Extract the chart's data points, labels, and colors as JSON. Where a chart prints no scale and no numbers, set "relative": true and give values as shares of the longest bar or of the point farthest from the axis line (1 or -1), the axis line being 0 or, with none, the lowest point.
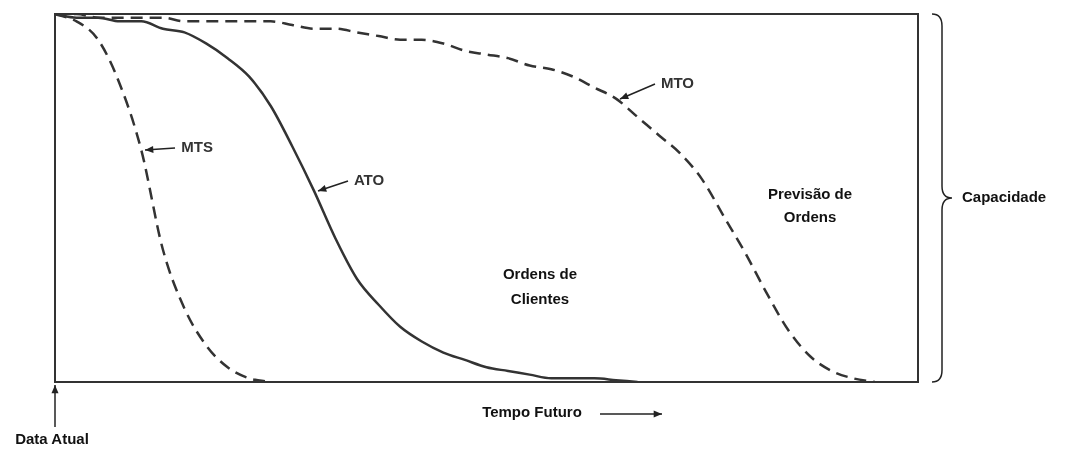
{
  "chart_data": {
    "type": "line",
    "relative": true,
    "xlabel": "Tempo Futuro",
    "legend": false,
    "marker": "none",
    "categories": [
      null,
      null,
      null,
      null,
      null,
      null,
      null,
      null,
      null,
      null,
      null,
      null,
      null,
      null,
      null,
      null,
      null,
      null,
      null,
      null,
      null,
      null,
      null,
      null,
      null,
      null,
      null,
      null,
      null,
      null,
      null,
      null,
      null,
      null,
      null,
      null,
      null,
      null,
      null,
      null,
      null
    ],
    "series": [
      {
        "name": "MTS",
        "color": "#333333",
        "line_style": "dashed",
        "values": [
          1,
          0.98,
          0.93,
          0.81,
          0.63,
          0.36,
          0.2,
          0.1,
          0.04,
          0.01,
          0,
          null,
          null,
          null,
          null,
          null,
          null,
          null,
          null,
          null,
          null,
          null,
          null,
          null,
          null,
          null,
          null,
          null,
          null,
          null,
          null,
          null,
          null,
          null,
          null,
          null,
          null,
          null,
          null,
          null,
          null
        ]
      },
      {
        "name": "ATO",
        "color": "#333333",
        "line_style": "solid",
        "values": [
          1,
          0.99,
          0.99,
          0.98,
          0.98,
          0.96,
          0.95,
          0.92,
          0.88,
          0.83,
          0.75,
          0.64,
          0.52,
          0.39,
          0.28,
          0.21,
          0.15,
          0.11,
          0.08,
          0.06,
          0.04,
          0.03,
          0.02,
          0.01,
          0.01,
          0.01,
          0.005,
          0,
          null,
          null,
          null,
          null,
          null,
          null,
          null,
          null,
          null,
          null,
          null,
          null,
          null
        ]
      },
      {
        "name": "MTO",
        "color": "#333333",
        "line_style": "dashed",
        "values": [
          1,
          1,
          0.99,
          0.99,
          0.99,
          0.99,
          0.98,
          0.98,
          0.98,
          0.98,
          0.98,
          0.97,
          0.96,
          0.96,
          0.95,
          0.94,
          0.93,
          0.93,
          0.92,
          0.9,
          0.89,
          0.88,
          0.86,
          0.85,
          0.83,
          0.8,
          0.77,
          0.72,
          0.67,
          0.62,
          0.55,
          0.45,
          0.35,
          0.24,
          0.14,
          0.07,
          0.03,
          0.01,
          0,
          null,
          null
        ]
      }
    ],
    "annotations": [
      "Previsão de Ordens",
      "Ordens de Clientes",
      "Capacidade",
      "Data Atual"
    ]
  }
}
